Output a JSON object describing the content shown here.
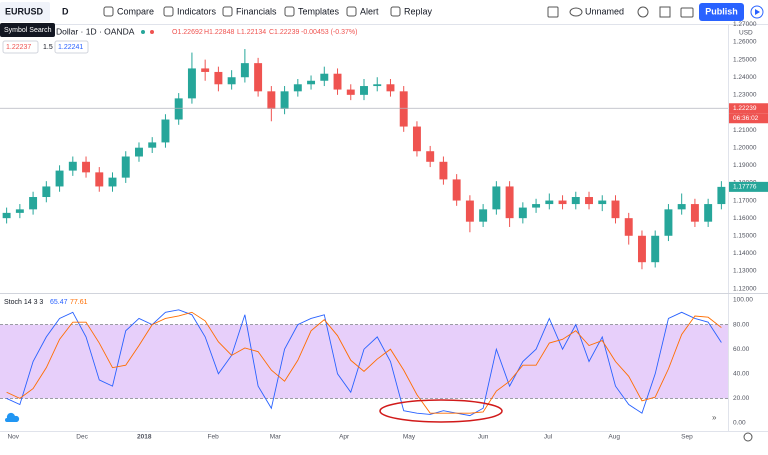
{
  "toolbar": {
    "symbol": "EURUSD",
    "interval": "D",
    "buttons": [
      "Compare",
      "Indicators",
      "Financials",
      "Templates",
      "Alert",
      "Replay"
    ],
    "layout_name": "Unnamed",
    "publish": "Publish"
  },
  "tooltip": "Symbol Search",
  "legend": {
    "title": "Dollar · 1D · OANDA",
    "ohlc": [
      "O1.22692",
      "H1.22848",
      "L1.22134",
      "C1.22239",
      "-0.00453 (-0.37%)"
    ],
    "inputs": [
      "1.22237",
      "1.5",
      "1.22241"
    ]
  },
  "chart_data": [
    {
      "type": "candlestick",
      "currency": "USD",
      "open": [
        1.16,
        1.163,
        1.165,
        1.172,
        1.178,
        1.187,
        1.192,
        1.186,
        1.178,
        1.183,
        1.195,
        1.2,
        1.203,
        1.216,
        1.228,
        1.245,
        1.243,
        1.236,
        1.24,
        1.248,
        1.232,
        1.222,
        1.232,
        1.236,
        1.238,
        1.242,
        1.233,
        1.23,
        1.235,
        1.236,
        1.232,
        1.212,
        1.198,
        1.192,
        1.182,
        1.17,
        1.158,
        1.165,
        1.178,
        1.16,
        1.166,
        1.168,
        1.17,
        1.168,
        1.172,
        1.168,
        1.17,
        1.16,
        1.15,
        1.135,
        1.15,
        1.165,
        1.168,
        1.158,
        1.168
      ],
      "high": [
        1.166,
        1.168,
        1.175,
        1.181,
        1.19,
        1.195,
        1.195,
        1.189,
        1.186,
        1.198,
        1.203,
        1.206,
        1.219,
        1.231,
        1.254,
        1.25,
        1.246,
        1.244,
        1.256,
        1.251,
        1.235,
        1.235,
        1.239,
        1.241,
        1.246,
        1.245,
        1.236,
        1.239,
        1.24,
        1.239,
        1.235,
        1.215,
        1.201,
        1.195,
        1.185,
        1.173,
        1.168,
        1.181,
        1.181,
        1.169,
        1.171,
        1.174,
        1.173,
        1.175,
        1.175,
        1.173,
        1.173,
        1.163,
        1.153,
        1.153,
        1.168,
        1.174,
        1.171,
        1.171,
        1.181
      ],
      "low": [
        1.157,
        1.16,
        1.162,
        1.169,
        1.175,
        1.184,
        1.183,
        1.175,
        1.175,
        1.18,
        1.192,
        1.197,
        1.2,
        1.213,
        1.225,
        1.238,
        1.232,
        1.233,
        1.237,
        1.229,
        1.215,
        1.219,
        1.229,
        1.233,
        1.235,
        1.23,
        1.227,
        1.227,
        1.232,
        1.229,
        1.209,
        1.195,
        1.189,
        1.179,
        1.167,
        1.152,
        1.155,
        1.162,
        1.155,
        1.157,
        1.163,
        1.165,
        1.165,
        1.165,
        1.165,
        1.164,
        1.157,
        1.145,
        1.131,
        1.132,
        1.147,
        1.162,
        1.155,
        1.155,
        1.165
      ],
      "close": [
        1.163,
        1.165,
        1.172,
        1.178,
        1.187,
        1.192,
        1.186,
        1.178,
        1.183,
        1.195,
        1.2,
        1.203,
        1.216,
        1.228,
        1.245,
        1.243,
        1.236,
        1.24,
        1.248,
        1.232,
        1.222,
        1.232,
        1.236,
        1.238,
        1.242,
        1.233,
        1.23,
        1.235,
        1.236,
        1.232,
        1.212,
        1.198,
        1.192,
        1.182,
        1.17,
        1.158,
        1.165,
        1.178,
        1.16,
        1.166,
        1.168,
        1.17,
        1.168,
        1.172,
        1.168,
        1.17,
        1.16,
        1.15,
        1.135,
        1.15,
        1.165,
        1.168,
        1.158,
        1.168,
        1.17776
      ],
      "up_color": "#26a69a",
      "down_color": "#ef5350",
      "xlim": [
        0,
        55
      ],
      "ylim": [
        1.11808,
        1.27022
      ],
      "yticks": [
        {
          "value": 1.12,
          "label": "1.12000"
        },
        {
          "value": 1.13,
          "label": "1.13000"
        },
        {
          "value": 1.14,
          "label": "1.14000"
        },
        {
          "value": 1.15,
          "label": "1.15000"
        },
        {
          "value": 1.16,
          "label": "1.16000"
        },
        {
          "value": 1.17,
          "label": "1.17000"
        },
        {
          "value": 1.18,
          "label": "1.18000"
        },
        {
          "value": 1.19,
          "label": "1.19000"
        },
        {
          "value": 1.2,
          "label": "1.20000"
        },
        {
          "value": 1.21,
          "label": "1.21000"
        },
        {
          "value": 1.22,
          "label": "1.22000"
        },
        {
          "value": 1.23,
          "label": "1.23000"
        },
        {
          "value": 1.24,
          "label": "1.24000"
        },
        {
          "value": 1.25,
          "label": "1.25000"
        },
        {
          "value": 1.26,
          "label": "1.26000"
        },
        {
          "value": 1.27,
          "label": "1.27000"
        }
      ],
      "crosshair_price": 1.22239,
      "countdown": "06:36:02",
      "grid": false
    },
    {
      "type": "line",
      "title": "Stoch 14 3 3",
      "series": [
        {
          "color": "#2962ff",
          "values": [
            20,
            15,
            50,
            70,
            85,
            90,
            70,
            35,
            30,
            75,
            85,
            80,
            90,
            92,
            88,
            70,
            40,
            55,
            88,
            30,
            12,
            60,
            80,
            85,
            88,
            40,
            25,
            60,
            70,
            50,
            10,
            8,
            7,
            10,
            8,
            6,
            12,
            60,
            30,
            50,
            60,
            85,
            60,
            80,
            50,
            70,
            30,
            15,
            8,
            40,
            85,
            90,
            85,
            82,
            65.47
          ]
        },
        {
          "color": "#ff6d00",
          "values": [
            25,
            20,
            28,
            45,
            68,
            82,
            82,
            65,
            45,
            47,
            63,
            80,
            85,
            87,
            90,
            83,
            66,
            55,
            61,
            58,
            43,
            34,
            51,
            75,
            84,
            71,
            51,
            42,
            52,
            60,
            43,
            23,
            8,
            8,
            8,
            8,
            9,
            26,
            34,
            47,
            47,
            65,
            68,
            75,
            63,
            67,
            50,
            38,
            18,
            21,
            44,
            72,
            87,
            86,
            77.61
          ]
        }
      ],
      "band": [
        20,
        80
      ],
      "band_color": "#e7cffa",
      "xlim": [
        0,
        55
      ],
      "ylim": [
        -6.5,
        104.07
      ],
      "yticks": [
        {
          "value": 0,
          "label": "0.00"
        },
        {
          "value": 20,
          "label": "20.00"
        },
        {
          "value": 40,
          "label": "40.00"
        },
        {
          "value": 60,
          "label": "60.00"
        },
        {
          "value": 80,
          "label": "80.00"
        },
        {
          "value": 100,
          "label": "100.00"
        }
      ],
      "xticks": [
        {
          "value": 1,
          "label": "Nov"
        },
        {
          "value": 6.2,
          "label": "Dec"
        },
        {
          "value": 10.9,
          "label": "2018"
        },
        {
          "value": 16.1,
          "label": "Feb"
        },
        {
          "value": 20.8,
          "label": "Mar"
        },
        {
          "value": 26,
          "label": "Apr"
        },
        {
          "value": 30.9,
          "label": "May"
        },
        {
          "value": 36.5,
          "label": "Jun"
        },
        {
          "value": 41.4,
          "label": "Jul"
        },
        {
          "value": 46.4,
          "label": "Aug"
        },
        {
          "value": 51.9,
          "label": "Sep"
        }
      ]
    }
  ]
}
